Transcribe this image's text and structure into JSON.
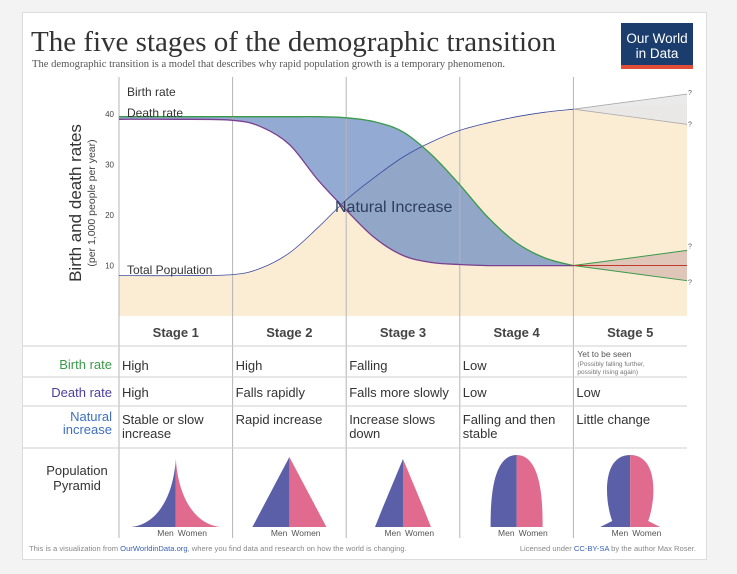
{
  "title": "The five stages of the demographic transition",
  "subtitle": "The demographic transition is a model that describes why rapid population growth is a temporary phenomenon.",
  "logo": {
    "line1": "Our World",
    "line2": "in Data",
    "bg_color": "#1a3d6d",
    "bar_color": "#e04e39"
  },
  "footer": {
    "left_text": "This is a visualization from ",
    "left_link": "OurWorldinData.org",
    "left_rest": ", where you find data and research on how the world is changing.",
    "right_text": "Licensed under ",
    "right_link": "CC-BY-SA",
    "right_rest": " by the author Max Roser."
  },
  "colors": {
    "birth": "#3a9a4a",
    "death": "#7b3f8f",
    "natural_increase_fill": "#6f8fc4",
    "population_fill": "#fbecd4",
    "population_line": "#3b4aa0",
    "men": "#5b5fa8",
    "women": "#e06b8f",
    "uncertain_fill": "#e8e8e8"
  },
  "chart_data": {
    "type": "line",
    "title": "The five stages of the demographic transition",
    "ylabel": "Birth and death rates",
    "ylabel_sub": "(per 1,000 people per year)",
    "yticks": [
      "10",
      "20",
      "30",
      "40"
    ],
    "ylim": [
      0,
      45
    ],
    "x": [
      0,
      0.5,
      1,
      1.25,
      1.5,
      1.75,
      2,
      2.25,
      2.5,
      2.75,
      3,
      3.25,
      3.5,
      3.75,
      4,
      4.25,
      4.5,
      4.75,
      5
    ],
    "series": [
      {
        "name": "Birth rate",
        "values": [
          39.5,
          39.5,
          39.5,
          39.5,
          39.5,
          39.5,
          39.3,
          38.5,
          36.5,
          32,
          26,
          19.5,
          14.5,
          11.5,
          10,
          10,
          10,
          10,
          10
        ]
      },
      {
        "name": "Death rate",
        "values": [
          39,
          39,
          38.8,
          37.5,
          34,
          27,
          21,
          15.5,
          12,
          10.6,
          10.2,
          10,
          10,
          10,
          10,
          10,
          10,
          10,
          10
        ]
      }
    ],
    "stage5_birth_end": [
      13,
      7
    ],
    "stage5_death_end": [
      10,
      10
    ],
    "total_population": {
      "name": "Total Population",
      "values": [
        8,
        8,
        8.2,
        9.5,
        12.5,
        17.5,
        23,
        27.5,
        31.5,
        34.5,
        36.8,
        38.3,
        39.5,
        40.4,
        41,
        41.4,
        41.7,
        41.9,
        42
      ],
      "stage5_end": [
        44,
        38
      ]
    },
    "annotations": [
      "Birth rate",
      "Death rate",
      "Natural Increase",
      "Total Population",
      "?"
    ]
  },
  "table": {
    "stages": [
      "Stage 1",
      "Stage 2",
      "Stage 3",
      "Stage 4",
      "Stage 5"
    ],
    "rows": [
      {
        "label": "Birth rate",
        "label_color": "#3a9a4a",
        "cells": [
          "High",
          "High",
          "Falling",
          "Low",
          "Yet to be seen"
        ],
        "note": "(Possibly falling further, possibly rising again)"
      },
      {
        "label": "Death rate",
        "label_color": "#4b3f9a",
        "cells": [
          "High",
          "Falls rapidly",
          "Falls more slowly",
          "Low",
          "Low"
        ]
      },
      {
        "label_lines": [
          "Natural",
          "increase"
        ],
        "label_color": "#3e6fbf",
        "cells": [
          [
            "Stable or slow",
            "increase"
          ],
          [
            "Rapid increase"
          ],
          [
            "Increase slows",
            "down"
          ],
          [
            "Falling and then",
            "stable"
          ],
          [
            "Little change"
          ]
        ]
      }
    ],
    "pyramid_label": [
      "Population",
      "Pyramid"
    ],
    "men_label": "Men",
    "women_label": "Women"
  }
}
